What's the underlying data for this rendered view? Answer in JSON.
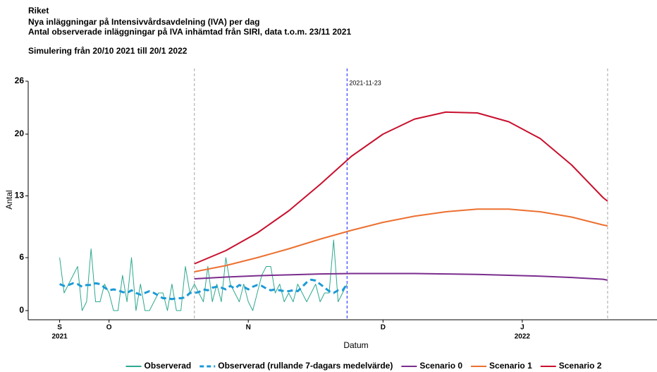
{
  "chart_data": {
    "type": "line",
    "title": "Riket",
    "subtitle": [
      "Nya inläggningar på Intensivvårdsavdelning (IVA) per dag",
      "Antal observerade inläggningar på IVA inhämtad från SIRI, data t.o.m. 23/11 2021"
    ],
    "caption": "Simulering från 20/10 2021 till 20/1 2022",
    "x_label": "Datum",
    "y_label": "Antal",
    "xlim": [
      "2021-09-13",
      "2022-01-31"
    ],
    "xticks": [
      {
        "value": "2021-09-20",
        "label": "S"
      },
      {
        "value": "2021-10-01",
        "label": "O"
      },
      {
        "value": "2021-11-01",
        "label": "N"
      },
      {
        "value": "2021-12-01",
        "label": "D"
      },
      {
        "value": "2022-01-01",
        "label": "J"
      }
    ],
    "xtick_years": [
      {
        "value": "2021-09-20",
        "label": "2021"
      },
      {
        "value": "2022-01-01",
        "label": "2022"
      }
    ],
    "ylim": [
      -1,
      26
    ],
    "yticks": [
      0,
      6,
      13,
      20,
      26
    ],
    "vlines": [
      {
        "x": "2021-10-20",
        "color": "#b3b3b3"
      },
      {
        "x": "2022-01-20",
        "color": "#b3b3b3"
      },
      {
        "x": "2021-11-23",
        "color": "#3344ff",
        "label": "2021-11-23",
        "label_color": "#a51a0a"
      }
    ],
    "series": [
      {
        "name": "Observerad",
        "color": "#2ea88e",
        "dashed": false,
        "x": [
          "2021-09-20",
          "2021-09-21",
          "2021-09-22",
          "2021-09-23",
          "2021-09-24",
          "2021-09-25",
          "2021-09-26",
          "2021-09-27",
          "2021-09-28",
          "2021-09-29",
          "2021-09-30",
          "2021-10-01",
          "2021-10-02",
          "2021-10-03",
          "2021-10-04",
          "2021-10-05",
          "2021-10-06",
          "2021-10-07",
          "2021-10-08",
          "2021-10-09",
          "2021-10-10",
          "2021-10-11",
          "2021-10-12",
          "2021-10-13",
          "2021-10-14",
          "2021-10-15",
          "2021-10-16",
          "2021-10-17",
          "2021-10-18",
          "2021-10-19",
          "2021-10-20",
          "2021-10-21",
          "2021-10-22",
          "2021-10-23",
          "2021-10-24",
          "2021-10-25",
          "2021-10-26",
          "2021-10-27",
          "2021-10-28",
          "2021-10-29",
          "2021-10-30",
          "2021-10-31",
          "2021-11-01",
          "2021-11-02",
          "2021-11-03",
          "2021-11-04",
          "2021-11-05",
          "2021-11-06",
          "2021-11-07",
          "2021-11-08",
          "2021-11-09",
          "2021-11-10",
          "2021-11-11",
          "2021-11-12",
          "2021-11-13",
          "2021-11-14",
          "2021-11-15",
          "2021-11-16",
          "2021-11-17",
          "2021-11-18",
          "2021-11-19",
          "2021-11-20",
          "2021-11-21",
          "2021-11-22",
          "2021-11-23"
        ],
        "values": [
          6,
          2,
          3,
          4,
          5,
          0,
          1,
          7,
          1,
          1,
          3,
          2,
          0,
          0,
          4,
          1,
          6,
          0,
          3,
          0,
          0,
          1,
          2,
          2,
          0,
          3,
          0,
          0,
          5,
          2,
          3,
          2,
          1,
          5,
          1,
          3,
          1,
          6,
          3,
          2,
          1,
          3,
          1,
          0,
          2,
          4,
          5,
          5,
          2,
          3,
          1,
          2,
          1,
          3,
          2,
          1,
          2,
          3,
          1,
          2,
          2,
          8,
          1,
          2,
          3
        ]
      },
      {
        "name": "Observerad (rullande 7-dagars medelvärde)",
        "color": "#1c9ad6",
        "dashed": true,
        "x": [
          "2021-09-20",
          "2021-09-21",
          "2021-09-22",
          "2021-09-23",
          "2021-09-24",
          "2021-09-25",
          "2021-09-26",
          "2021-09-27",
          "2021-09-28",
          "2021-09-29",
          "2021-09-30",
          "2021-10-01",
          "2021-10-02",
          "2021-10-03",
          "2021-10-04",
          "2021-10-05",
          "2021-10-06",
          "2021-10-07",
          "2021-10-08",
          "2021-10-09",
          "2021-10-10",
          "2021-10-11",
          "2021-10-12",
          "2021-10-13",
          "2021-10-14",
          "2021-10-15",
          "2021-10-16",
          "2021-10-17",
          "2021-10-18",
          "2021-10-19",
          "2021-10-20",
          "2021-10-21",
          "2021-10-22",
          "2021-10-23",
          "2021-10-24",
          "2021-10-25",
          "2021-10-26",
          "2021-10-27",
          "2021-10-28",
          "2021-10-29",
          "2021-10-30",
          "2021-10-31",
          "2021-11-01",
          "2021-11-02",
          "2021-11-03",
          "2021-11-04",
          "2021-11-05",
          "2021-11-06",
          "2021-11-07",
          "2021-11-08",
          "2021-11-09",
          "2021-11-10",
          "2021-11-11",
          "2021-11-12",
          "2021-11-13",
          "2021-11-14",
          "2021-11-15",
          "2021-11-16",
          "2021-11-17",
          "2021-11-18",
          "2021-11-19",
          "2021-11-20",
          "2021-11-21",
          "2021-11-22",
          "2021-11-23"
        ],
        "values": [
          3.0,
          2.8,
          2.9,
          3.1,
          3.0,
          2.7,
          2.9,
          2.9,
          3.1,
          3.0,
          2.6,
          2.3,
          2.4,
          2.3,
          2.1,
          2.0,
          2.3,
          2.0,
          1.8,
          2.0,
          2.2,
          2.0,
          1.7,
          1.4,
          1.4,
          1.3,
          1.4,
          1.4,
          1.5,
          2.0,
          2.0,
          2.1,
          2.4,
          2.3,
          2.6,
          2.7,
          2.6,
          2.4,
          2.8,
          2.5,
          2.9,
          2.7,
          2.4,
          2.7,
          2.9,
          2.8,
          2.5,
          2.3,
          2.4,
          2.3,
          2.2,
          2.2,
          2.3,
          2.2,
          2.7,
          3.2,
          3.5,
          3.4,
          3.0,
          2.6,
          2.2,
          2.0,
          2.3,
          2.3,
          3.0
        ]
      },
      {
        "name": "Scenario 0",
        "color": "#7b2d8e",
        "dashed": false,
        "x": [
          "2021-10-20",
          "2021-10-27",
          "2021-11-03",
          "2021-11-10",
          "2021-11-17",
          "2021-11-24",
          "2021-12-01",
          "2021-12-08",
          "2021-12-15",
          "2021-12-22",
          "2021-12-29",
          "2022-01-05",
          "2022-01-12",
          "2022-01-19",
          "2022-01-20"
        ],
        "values": [
          3.6,
          3.8,
          3.95,
          4.05,
          4.15,
          4.2,
          4.2,
          4.2,
          4.15,
          4.1,
          4.0,
          3.9,
          3.75,
          3.55,
          3.45
        ]
      },
      {
        "name": "Scenario 1",
        "color": "#ec7030",
        "dashed": false,
        "x": [
          "2021-10-20",
          "2021-10-27",
          "2021-11-03",
          "2021-11-10",
          "2021-11-17",
          "2021-11-24",
          "2021-12-01",
          "2021-12-08",
          "2021-12-15",
          "2021-12-22",
          "2021-12-29",
          "2022-01-05",
          "2022-01-12",
          "2022-01-19",
          "2022-01-20"
        ],
        "values": [
          4.4,
          5.1,
          6.0,
          7.0,
          8.1,
          9.1,
          10.0,
          10.7,
          11.2,
          11.5,
          11.5,
          11.2,
          10.6,
          9.7,
          9.6
        ]
      },
      {
        "name": "Scenario 2",
        "color": "#c8102e",
        "dashed": false,
        "x": [
          "2021-10-20",
          "2021-10-27",
          "2021-11-03",
          "2021-11-10",
          "2021-11-17",
          "2021-11-24",
          "2021-12-01",
          "2021-12-08",
          "2021-12-15",
          "2021-12-22",
          "2021-12-29",
          "2022-01-05",
          "2022-01-12",
          "2022-01-19",
          "2022-01-20"
        ],
        "values": [
          5.3,
          6.8,
          8.8,
          11.3,
          14.3,
          17.5,
          20.0,
          21.7,
          22.5,
          22.4,
          21.4,
          19.5,
          16.5,
          12.8,
          12.4
        ]
      }
    ]
  }
}
